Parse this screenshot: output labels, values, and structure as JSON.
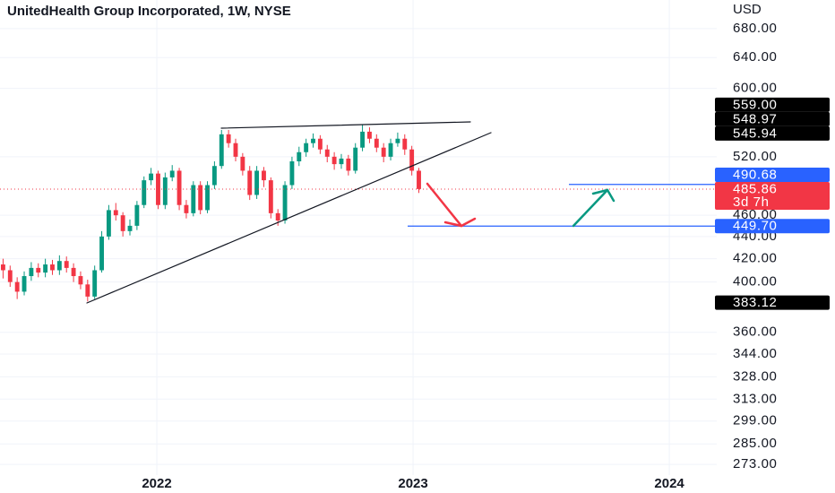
{
  "chart_data": {
    "type": "candlestick",
    "title": "UnitedHealth Group Incorporated, 1W, NYSE",
    "currency": "USD",
    "x": [
      2021.4,
      2021.4275,
      2021.455,
      2021.4825,
      2021.51,
      2021.5375,
      2021.565,
      2021.5925,
      2021.62,
      2021.6475,
      2021.675,
      2021.7025,
      2021.73,
      2021.7575,
      2021.785,
      2021.8125,
      2021.84,
      2021.8675,
      2021.895,
      2021.9225,
      2021.95,
      2021.9775,
      2022.005,
      2022.0325,
      2022.06,
      2022.0875,
      2022.115,
      2022.1425,
      2022.17,
      2022.1975,
      2022.225,
      2022.2525,
      2022.28,
      2022.3075,
      2022.335,
      2022.3625,
      2022.39,
      2022.4175,
      2022.445,
      2022.4725,
      2022.5,
      2022.5275,
      2022.555,
      2022.5825,
      2022.61,
      2022.6375,
      2022.665,
      2022.6925,
      2022.72,
      2022.7475,
      2022.775,
      2022.8025,
      2022.83,
      2022.8575,
      2022.885,
      2022.9125,
      2022.94,
      2022.9675,
      2022.995,
      2023.0225
    ],
    "open": [
      415,
      410,
      400,
      392,
      405,
      412,
      408,
      415,
      410,
      418,
      412,
      405,
      398,
      388,
      410,
      440,
      465,
      460,
      445,
      450,
      470,
      495,
      502,
      470,
      498,
      505,
      470,
      462,
      490,
      465,
      490,
      510,
      545,
      535,
      520,
      505,
      480,
      505,
      495,
      462,
      455,
      490,
      515,
      525,
      535,
      540,
      528,
      520,
      512,
      518,
      505,
      530,
      548,
      540,
      530,
      520,
      535,
      540,
      528,
      505
    ],
    "high": [
      420,
      414,
      404,
      409,
      417,
      416,
      420,
      419,
      423,
      422,
      416,
      409,
      402,
      414,
      445,
      470,
      472,
      463,
      456,
      474,
      499,
      508,
      505,
      503,
      511,
      508,
      475,
      494,
      494,
      494,
      515,
      550,
      550,
      540,
      524,
      510,
      510,
      509,
      498,
      466,
      494,
      520,
      531,
      540,
      546,
      544,
      533,
      525,
      523,
      522,
      535,
      556,
      553,
      545,
      535,
      540,
      547,
      545,
      532,
      508
    ],
    "low": [
      403,
      396,
      386,
      389,
      401,
      404,
      404,
      406,
      406,
      408,
      400,
      394,
      384,
      386,
      408,
      437,
      455,
      440,
      441,
      446,
      467,
      490,
      466,
      466,
      494,
      465,
      457,
      459,
      461,
      462,
      486,
      507,
      530,
      515,
      500,
      475,
      476,
      488,
      457,
      450,
      452,
      486,
      510,
      520,
      530,
      523,
      514,
      506,
      507,
      500,
      502,
      526,
      535,
      525,
      514,
      516,
      531,
      522,
      500,
      482
    ],
    "close": [
      410,
      400,
      392,
      405,
      412,
      408,
      415,
      410,
      418,
      412,
      405,
      398,
      388,
      410,
      440,
      465,
      460,
      445,
      450,
      470,
      495,
      502,
      470,
      498,
      505,
      470,
      462,
      490,
      465,
      490,
      510,
      545,
      535,
      520,
      505,
      480,
      505,
      495,
      462,
      455,
      490,
      515,
      525,
      535,
      540,
      528,
      520,
      512,
      518,
      505,
      530,
      548,
      540,
      530,
      520,
      535,
      540,
      528,
      505,
      486
    ],
    "up_color": "#089981",
    "down_color": "#f23645",
    "xlim": [
      2021.388,
      2024.185
    ],
    "xticks": [
      2022,
      2023,
      2024
    ],
    "ylim": [
      267,
      722
    ],
    "log_scale": true,
    "grid": true,
    "yticks": [
      {
        "value": 273,
        "label": "273.00"
      },
      {
        "value": 285,
        "label": "285.00"
      },
      {
        "value": 299,
        "label": "299.00"
      },
      {
        "value": 313,
        "label": "313.00"
      },
      {
        "value": 328,
        "label": "328.00"
      },
      {
        "value": 344,
        "label": "344.00"
      },
      {
        "value": 360,
        "label": "360.00"
      },
      {
        "value": 400,
        "label": "400.00"
      },
      {
        "value": 420,
        "label": "420.00"
      },
      {
        "value": 440,
        "label": "440.00"
      },
      {
        "value": 460,
        "label": "460.00"
      },
      {
        "value": 520,
        "label": "520.00"
      },
      {
        "value": 600,
        "label": "600.00"
      },
      {
        "value": 640,
        "label": "640.00"
      },
      {
        "value": 680,
        "label": "680.00"
      }
    ],
    "price_labels": [
      {
        "value": 559,
        "label": "559.00",
        "color": "#000000"
      },
      {
        "value": 548.97,
        "label": "548.97",
        "color": "#000000"
      },
      {
        "value": 545.94,
        "label": "545.94",
        "color": "#000000"
      },
      {
        "value": 490.68,
        "label": "490.68",
        "color": "#2962ff"
      },
      {
        "value": 485.86,
        "label": "485.86",
        "countdown": "3d 7h",
        "color": "#f23645"
      },
      {
        "value": 449.7,
        "label": "449.70",
        "color": "#2962ff"
      },
      {
        "value": 383.12,
        "label": "383.12",
        "color": "#000000"
      }
    ]
  }
}
